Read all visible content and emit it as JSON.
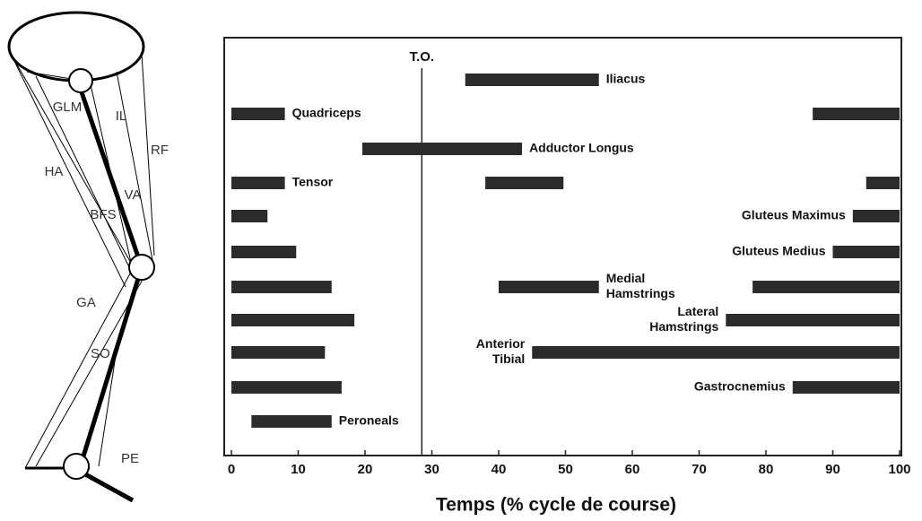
{
  "diagram": {
    "labels": [
      "GLM",
      "IL",
      "RF",
      "HA",
      "VA",
      "BFS",
      "GA",
      "SO",
      "PE"
    ]
  },
  "chart_data": {
    "type": "timeline",
    "xlabel": "Temps (% cycle de course)",
    "xlim": [
      0,
      100
    ],
    "xticks": [
      0,
      10,
      20,
      30,
      40,
      50,
      60,
      70,
      80,
      90,
      100
    ],
    "marker": {
      "value": 28.5,
      "label": "T.O."
    },
    "color": "#2b2b2b",
    "rows": [
      {
        "label": [
          "Iliacus"
        ],
        "bars": [
          [
            35,
            55
          ]
        ]
      },
      {
        "label": [
          "Quadriceps"
        ],
        "bars": [
          [
            0,
            8
          ],
          [
            87,
            100
          ]
        ]
      },
      {
        "label": [
          "Adductor Longus"
        ],
        "bars": [
          [
            19.6,
            43.5
          ]
        ]
      },
      {
        "label": [
          "Tensor"
        ],
        "bars": [
          [
            0,
            8
          ],
          [
            38,
            49.7
          ],
          [
            95,
            100
          ]
        ]
      },
      {
        "label": [
          "Gluteus Maximus"
        ],
        "bars": [
          [
            0,
            5.4
          ],
          [
            93,
            100
          ]
        ]
      },
      {
        "label": [
          "Gluteus Medius"
        ],
        "bars": [
          [
            0,
            9.7
          ],
          [
            90,
            100
          ]
        ]
      },
      {
        "label": [
          "Medial",
          "Hamstrings"
        ],
        "bars": [
          [
            0,
            15
          ],
          [
            40,
            55
          ],
          [
            78,
            100
          ]
        ]
      },
      {
        "label": [
          "Lateral",
          "Hamstrings"
        ],
        "bars": [
          [
            0,
            18.4
          ],
          [
            74,
            100
          ]
        ]
      },
      {
        "label": [
          "Anterior",
          "Tibial"
        ],
        "bars": [
          [
            0,
            14
          ],
          [
            45,
            100
          ]
        ]
      },
      {
        "label": [
          "Gastrocnemius"
        ],
        "bars": [
          [
            0,
            16.5
          ],
          [
            84,
            100
          ]
        ]
      },
      {
        "label": [
          "Peroneals"
        ],
        "bars": [
          [
            3,
            15
          ]
        ]
      }
    ]
  }
}
